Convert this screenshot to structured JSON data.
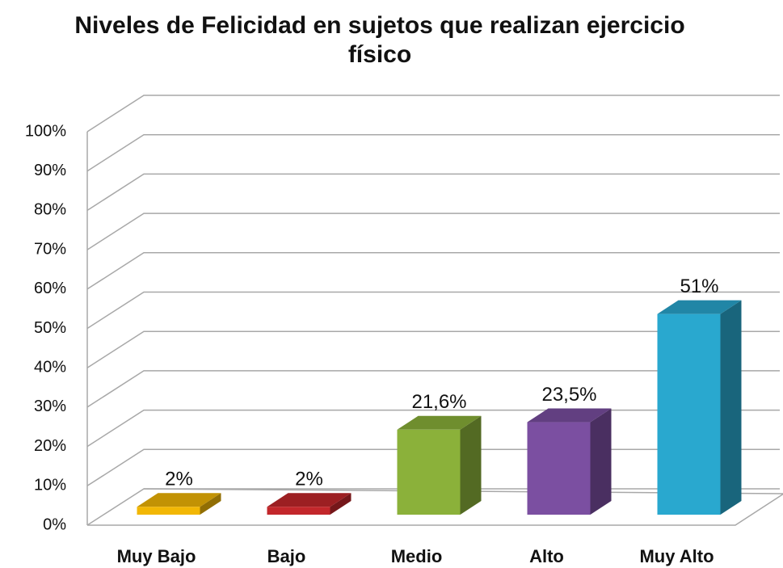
{
  "chart_data": {
    "type": "bar3d",
    "title": "Niveles de Felicidad en sujetos que realizan ejercicio físico",
    "categories": [
      "Muy Bajo",
      "Bajo",
      "Medio",
      "Alto",
      "Muy Alto"
    ],
    "values": [
      2,
      2,
      21.6,
      23.5,
      51
    ],
    "value_labels": [
      "2%",
      "2%",
      "21,6%",
      "23,5%",
      "51%"
    ],
    "colors": [
      "#f2b705",
      "#c3272b",
      "#8bb13a",
      "#7b4fa1",
      "#29a8cf"
    ],
    "ylim": [
      0,
      100
    ],
    "yticks": [
      {
        "value": 0,
        "label": "0%"
      },
      {
        "value": 10,
        "label": "10%"
      },
      {
        "value": 20,
        "label": "20%"
      },
      {
        "value": 30,
        "label": "30%"
      },
      {
        "value": 40,
        "label": "40%"
      },
      {
        "value": 50,
        "label": "50%"
      },
      {
        "value": 60,
        "label": "60%"
      },
      {
        "value": 70,
        "label": "70%"
      },
      {
        "value": 80,
        "label": "80%"
      },
      {
        "value": 90,
        "label": "90%"
      },
      {
        "value": 100,
        "label": "100%"
      }
    ],
    "grid": true
  }
}
